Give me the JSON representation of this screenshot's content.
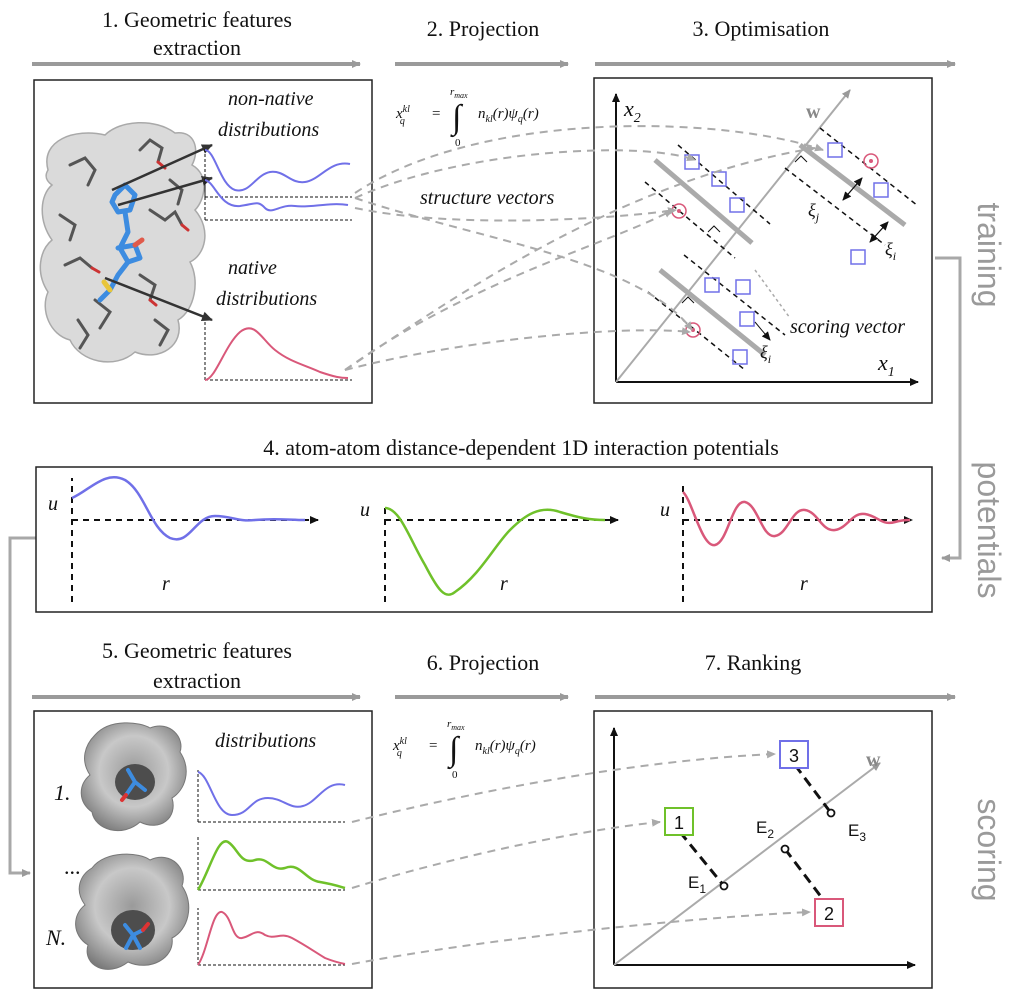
{
  "steps": {
    "s1_line1": "1. Geometric features",
    "s1_line2": "extraction",
    "s2": "2. Projection",
    "s3": "3. Optimisation",
    "s4": "4. atom-atom distance-dependent 1D interaction potentials",
    "s5_line1": "5. Geometric features",
    "s5_line2": "extraction",
    "s6": "6. Projection",
    "s7": "7. Ranking"
  },
  "phases": {
    "training": "training",
    "potentials": "potentials",
    "scoring": "scoring"
  },
  "panel1": {
    "non_native_line1": "non-native",
    "non_native_line2": "distributions",
    "native_line1": "native",
    "native_line2": "distributions"
  },
  "formula": {
    "lhs": "x",
    "sup": "kl",
    "sub": "q",
    "eq": "=",
    "upper": "r",
    "upper_sub": "max",
    "lower": "0",
    "integral": "∫",
    "integrand": "n",
    "integrand_sub": "kl",
    "integrand_rest": "(r)ψ",
    "psi_sub": "q",
    "tail": "(r)"
  },
  "labels": {
    "structure_vectors": "structure vectors",
    "scoring_vector": "scoring vector",
    "w": "w",
    "x1": "x",
    "x1_sub": "1",
    "x2": "x",
    "x2_sub": "2",
    "xi": "ξ",
    "xi_i_sub": "i",
    "xi_j_sub": "j",
    "u": "u",
    "r": "r",
    "distributions": "distributions",
    "item_1": "1.",
    "item_dots": "...",
    "item_n": "N.",
    "rank1": "1",
    "rank2": "2",
    "rank3": "3",
    "E": "E",
    "E1_sub": "1",
    "E2_sub": "2",
    "E3_sub": "3"
  },
  "colors": {
    "blue": "#7070e8",
    "green": "#6fc12a",
    "red": "#d9587a",
    "gray_arrow": "#9a9a9a",
    "panel_border": "#222222"
  }
}
